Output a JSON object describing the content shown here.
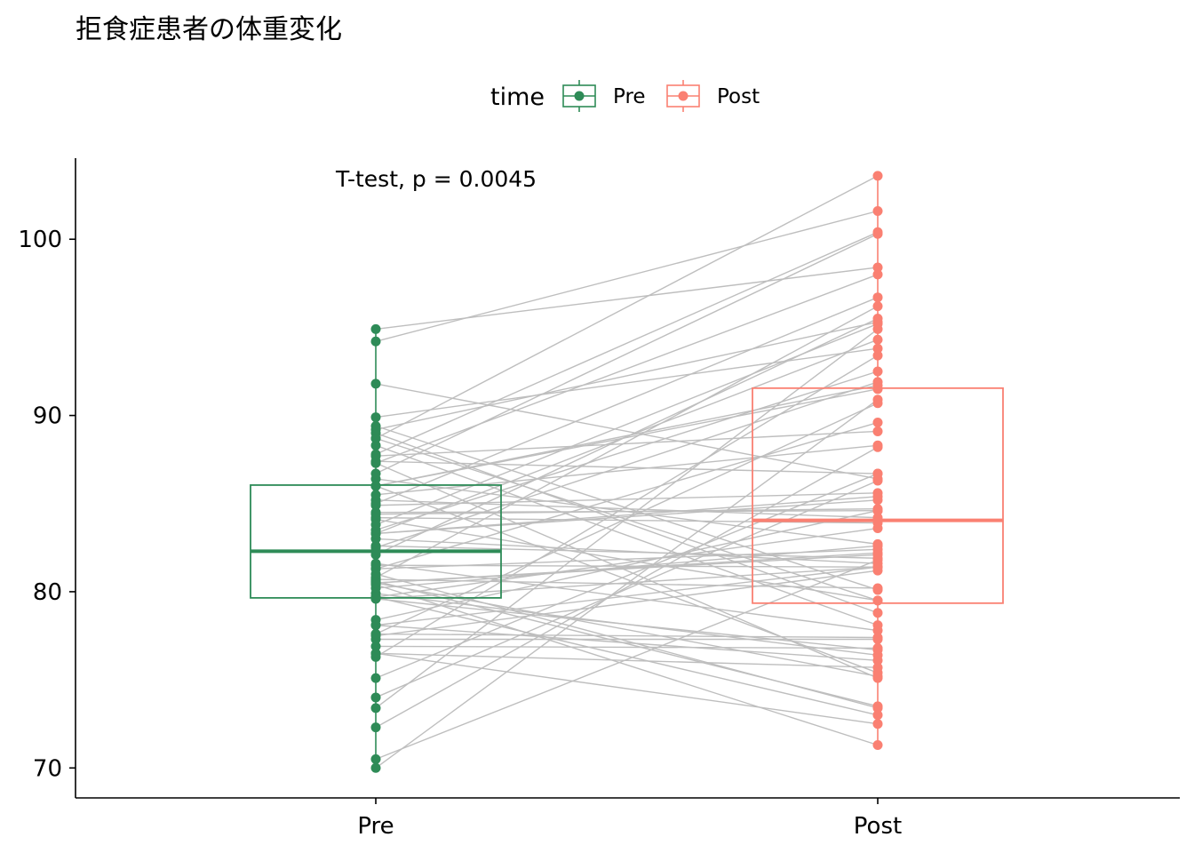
{
  "chart_data": {
    "type": "box_paired",
    "title": "拒食症患者の体重変化",
    "xlabel": "",
    "ylabel": "",
    "categories": [
      "Pre",
      "Post"
    ],
    "ylim": [
      68.3,
      104.6
    ],
    "yticks": [
      70,
      80,
      90,
      100
    ],
    "legend": {
      "title": "time",
      "position": "top",
      "entries": [
        {
          "label": "Pre",
          "color": "#2E8B57"
        },
        {
          "label": "Post",
          "color": "#FA8072"
        }
      ]
    },
    "annotation": "T-test, p = 0.0045",
    "colors": {
      "Pre": "#2E8B57",
      "Post": "#FA8072",
      "lines": "#BEBEBE"
    },
    "boxes": [
      {
        "name": "Pre",
        "q1": 79.65,
        "median": 82.3,
        "q3": 86.05,
        "whisker_low": 70.0,
        "whisker_high": 94.9
      },
      {
        "name": "Post",
        "q1": 79.35,
        "median": 84.05,
        "q3": 91.55,
        "whisker_low": 71.3,
        "whisker_high": 103.6
      }
    ],
    "pairs": [
      [
        80.7,
        80.2
      ],
      [
        89.4,
        80.1
      ],
      [
        91.8,
        86.4
      ],
      [
        74.0,
        86.3
      ],
      [
        78.1,
        76.1
      ],
      [
        88.3,
        78.1
      ],
      [
        87.3,
        75.1
      ],
      [
        75.1,
        86.7
      ],
      [
        80.6,
        73.5
      ],
      [
        78.4,
        84.6
      ],
      [
        77.6,
        77.4
      ],
      [
        88.7,
        79.5
      ],
      [
        81.3,
        89.6
      ],
      [
        78.1,
        81.4
      ],
      [
        70.5,
        81.8
      ],
      [
        77.3,
        77.3
      ],
      [
        85.2,
        84.2
      ],
      [
        86.0,
        75.4
      ],
      [
        84.1,
        79.5
      ],
      [
        79.7,
        73.0
      ],
      [
        85.5,
        88.3
      ],
      [
        84.4,
        84.7
      ],
      [
        79.6,
        81.4
      ],
      [
        77.5,
        81.2
      ],
      [
        72.3,
        88.2
      ],
      [
        89.0,
        78.8
      ],
      [
        80.5,
        82.2
      ],
      [
        84.9,
        85.6
      ],
      [
        81.5,
        81.4
      ],
      [
        82.6,
        81.9
      ],
      [
        79.9,
        76.4
      ],
      [
        88.7,
        103.6
      ],
      [
        94.9,
        98.4
      ],
      [
        76.3,
        93.4
      ],
      [
        81.0,
        73.4
      ],
      [
        80.5,
        82.1
      ],
      [
        85.0,
        96.7
      ],
      [
        89.2,
        95.3
      ],
      [
        81.3,
        82.4
      ],
      [
        76.5,
        72.5
      ],
      [
        70.0,
        90.9
      ],
      [
        80.4,
        71.3
      ],
      [
        83.3,
        85.4
      ],
      [
        83.0,
        81.6
      ],
      [
        87.7,
        89.1
      ],
      [
        84.2,
        83.9
      ],
      [
        86.4,
        82.7
      ],
      [
        76.5,
        75.7
      ],
      [
        80.2,
        82.6
      ],
      [
        87.8,
        100.4
      ],
      [
        83.3,
        85.2
      ],
      [
        79.7,
        83.6
      ],
      [
        84.5,
        84.6
      ],
      [
        80.8,
        96.2
      ],
      [
        87.4,
        86.7
      ],
      [
        83.8,
        95.2
      ],
      [
        83.3,
        94.3
      ],
      [
        86.0,
        91.5
      ],
      [
        82.5,
        91.9
      ],
      [
        86.7,
        100.3
      ],
      [
        79.6,
        76.7
      ],
      [
        76.9,
        76.8
      ],
      [
        94.2,
        101.6
      ],
      [
        73.4,
        94.9
      ],
      [
        80.5,
        75.2
      ],
      [
        81.6,
        77.8
      ],
      [
        82.1,
        95.5
      ],
      [
        77.6,
        90.7
      ],
      [
        83.5,
        92.5
      ],
      [
        89.9,
        93.8
      ],
      [
        86.0,
        91.7
      ],
      [
        87.3,
        98.0
      ]
    ]
  }
}
